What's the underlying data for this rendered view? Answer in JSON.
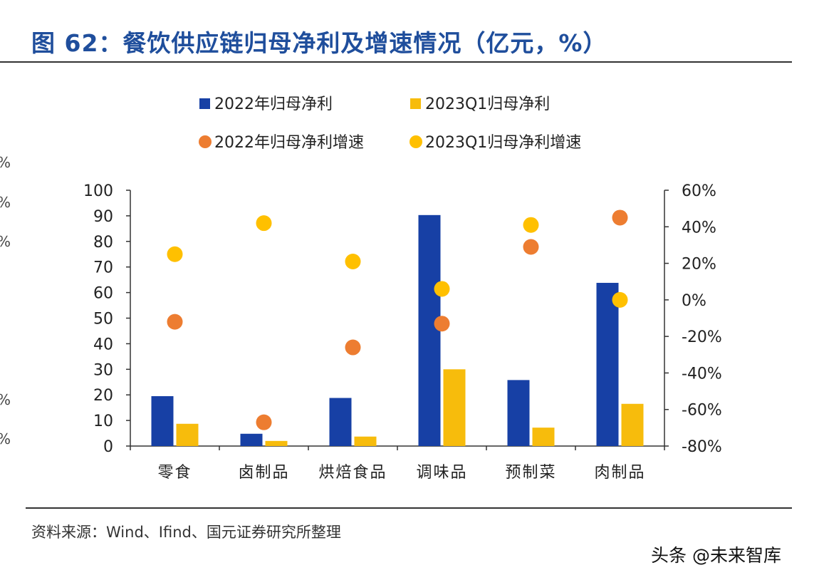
{
  "header": {
    "title": "图 62：餐饮供应链归母净利及增速情况（亿元，%）"
  },
  "footer": {
    "source": "资料来源：Wind、Ifind、国元证券研究所整理",
    "watermark": "头条 @未来智库"
  },
  "edge_fragments": [
    "%",
    "%",
    "%",
    "%",
    "%"
  ],
  "colors": {
    "blue": "#1740a5",
    "gold": "#f7bc0c",
    "orange": "#ed7d31",
    "yellow_dot": "#ffc000"
  },
  "chart_data": {
    "type": "bar",
    "title": "",
    "xlabel": "",
    "ylabel": "",
    "categories": [
      "零食",
      "卤制品",
      "烘焙食品",
      "调味品",
      "预制菜",
      "肉制品"
    ],
    "series": [
      {
        "name": "2022年归母净利",
        "kind": "bar",
        "axis": "left",
        "color": "#1740a5",
        "values": [
          19.5,
          4.8,
          18.8,
          90.3,
          25.8,
          63.8
        ]
      },
      {
        "name": "2023Q1归母净利",
        "kind": "bar",
        "axis": "left",
        "color": "#f7bc0c",
        "values": [
          8.7,
          2.0,
          3.7,
          30.0,
          7.2,
          16.5
        ]
      },
      {
        "name": "2022年归母净利增速",
        "kind": "scatter",
        "axis": "right",
        "color": "#ed7d31",
        "values": [
          -12,
          -67,
          -26,
          -13,
          29,
          45
        ]
      },
      {
        "name": "2023Q1归母净利增速",
        "kind": "scatter",
        "axis": "right",
        "color": "#ffc000",
        "values": [
          25,
          42,
          21,
          6,
          41,
          0
        ]
      }
    ],
    "ylim_left": [
      0,
      100
    ],
    "yticks_left": [
      0,
      10,
      20,
      30,
      40,
      50,
      60,
      70,
      80,
      90,
      100
    ],
    "ylim_right": [
      -80,
      60
    ],
    "yticks_right": [
      -80,
      -60,
      -40,
      -20,
      0,
      20,
      40,
      60
    ],
    "ytick_labels_right": [
      "-80%",
      "-60%",
      "-40%",
      "-20%",
      "0%",
      "20%",
      "40%",
      "60%"
    ],
    "grid": false,
    "legend_position": "top-center"
  }
}
